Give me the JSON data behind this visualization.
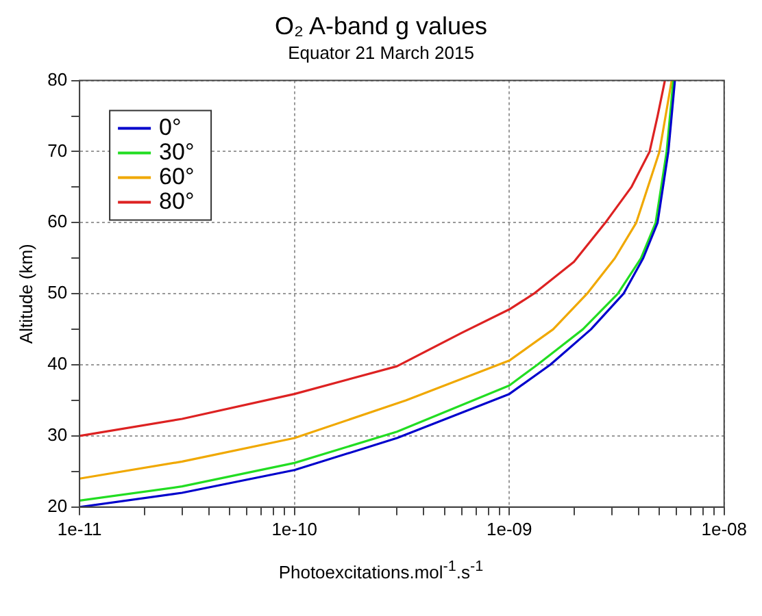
{
  "chart_data": {
    "type": "line",
    "title": "O₂ A-band g values",
    "subtitle": "Equator 21 March 2015",
    "xlabel": "Photoexcitations.mol$^{-1}$.s$^{-1}$",
    "ylabel": "Altitude (km)",
    "log": "x",
    "grid": true,
    "legend": "top left",
    "marker": "none",
    "line_style": "solid",
    "xlim": [
      1e-11,
      1e-08
    ],
    "ylim": [
      20,
      80
    ],
    "xticks": [
      {
        "value": 1e-11,
        "label": "1e-11"
      },
      {
        "value": 2e-11,
        "label": null
      },
      {
        "value": 3e-11,
        "label": null
      },
      {
        "value": 4e-11,
        "label": null
      },
      {
        "value": 5e-11,
        "label": null
      },
      {
        "value": 6e-11,
        "label": null
      },
      {
        "value": 7e-11,
        "label": null
      },
      {
        "value": 8e-11,
        "label": null
      },
      {
        "value": 9e-11,
        "label": null
      },
      {
        "value": 1e-10,
        "label": "1e-10"
      },
      {
        "value": 2e-10,
        "label": null
      },
      {
        "value": 3e-10,
        "label": null
      },
      {
        "value": 4e-10,
        "label": null
      },
      {
        "value": 5e-10,
        "label": null
      },
      {
        "value": 6e-10,
        "label": null
      },
      {
        "value": 7e-10,
        "label": null
      },
      {
        "value": 8e-10,
        "label": null
      },
      {
        "value": 9e-10,
        "label": null
      },
      {
        "value": 1e-09,
        "label": "1e-09"
      },
      {
        "value": 2e-09,
        "label": null
      },
      {
        "value": 3e-09,
        "label": null
      },
      {
        "value": 4e-09,
        "label": null
      },
      {
        "value": 5e-09,
        "label": null
      },
      {
        "value": 6e-09,
        "label": null
      },
      {
        "value": 7e-09,
        "label": null
      },
      {
        "value": 8e-09,
        "label": null
      },
      {
        "value": 9e-09,
        "label": null
      },
      {
        "value": 1e-08,
        "label": "1e-08"
      }
    ],
    "yticks": [
      20,
      {
        "value": 25,
        "label": null
      },
      30,
      {
        "value": 35,
        "label": null
      },
      40,
      {
        "value": 45,
        "label": null
      },
      50,
      {
        "value": 55,
        "label": null
      },
      60,
      {
        "value": 65,
        "label": null
      },
      70,
      {
        "value": 75,
        "label": null
      },
      80
    ],
    "series": [
      {
        "name": "0°",
        "color": "#0000cc",
        "x": [
          1e-11,
          3e-11,
          1e-10,
          3e-10,
          1e-09,
          1.55e-09,
          2.4e-09,
          3.4e-09,
          4.2e-09,
          4.9e-09,
          5.5e-09,
          5.9e-09
        ],
        "values": [
          20,
          22,
          25.2,
          29.7,
          35.9,
          40,
          45,
          50,
          55,
          60,
          70,
          80
        ]
      },
      {
        "name": "30°",
        "color": "#22dd22",
        "x": [
          1e-11,
          3e-11,
          1e-10,
          3e-10,
          1e-09,
          1.35e-09,
          2.2e-09,
          3.2e-09,
          4.1e-09,
          4.8e-09,
          5.4e-09,
          5.8e-09
        ],
        "values": [
          20.9,
          22.9,
          26.2,
          30.6,
          37.1,
          40,
          45,
          50,
          55,
          60,
          70,
          80
        ]
      },
      {
        "name": "60°",
        "color": "#f0a800",
        "x": [
          1e-11,
          3e-11,
          1e-10,
          3.3e-10,
          1e-09,
          1.6e-09,
          2.3e-09,
          3.1e-09,
          3.9e-09,
          5e-09,
          5.7e-09
        ],
        "values": [
          24,
          26.4,
          29.7,
          35,
          40.6,
          45,
          50,
          55,
          60,
          70,
          80
        ]
      },
      {
        "name": "80°",
        "color": "#dd2222",
        "x": [
          1e-11,
          3e-11,
          1e-10,
          3e-10,
          6e-10,
          1e-09,
          1.3e-09,
          2e-09,
          2.8e-09,
          3.7e-09,
          4.5e-09,
          4.9e-09,
          5.3e-09
        ],
        "values": [
          30,
          32.4,
          35.9,
          39.8,
          44.5,
          47.8,
          50,
          54.5,
          60,
          65,
          70,
          75,
          80
        ]
      }
    ]
  }
}
